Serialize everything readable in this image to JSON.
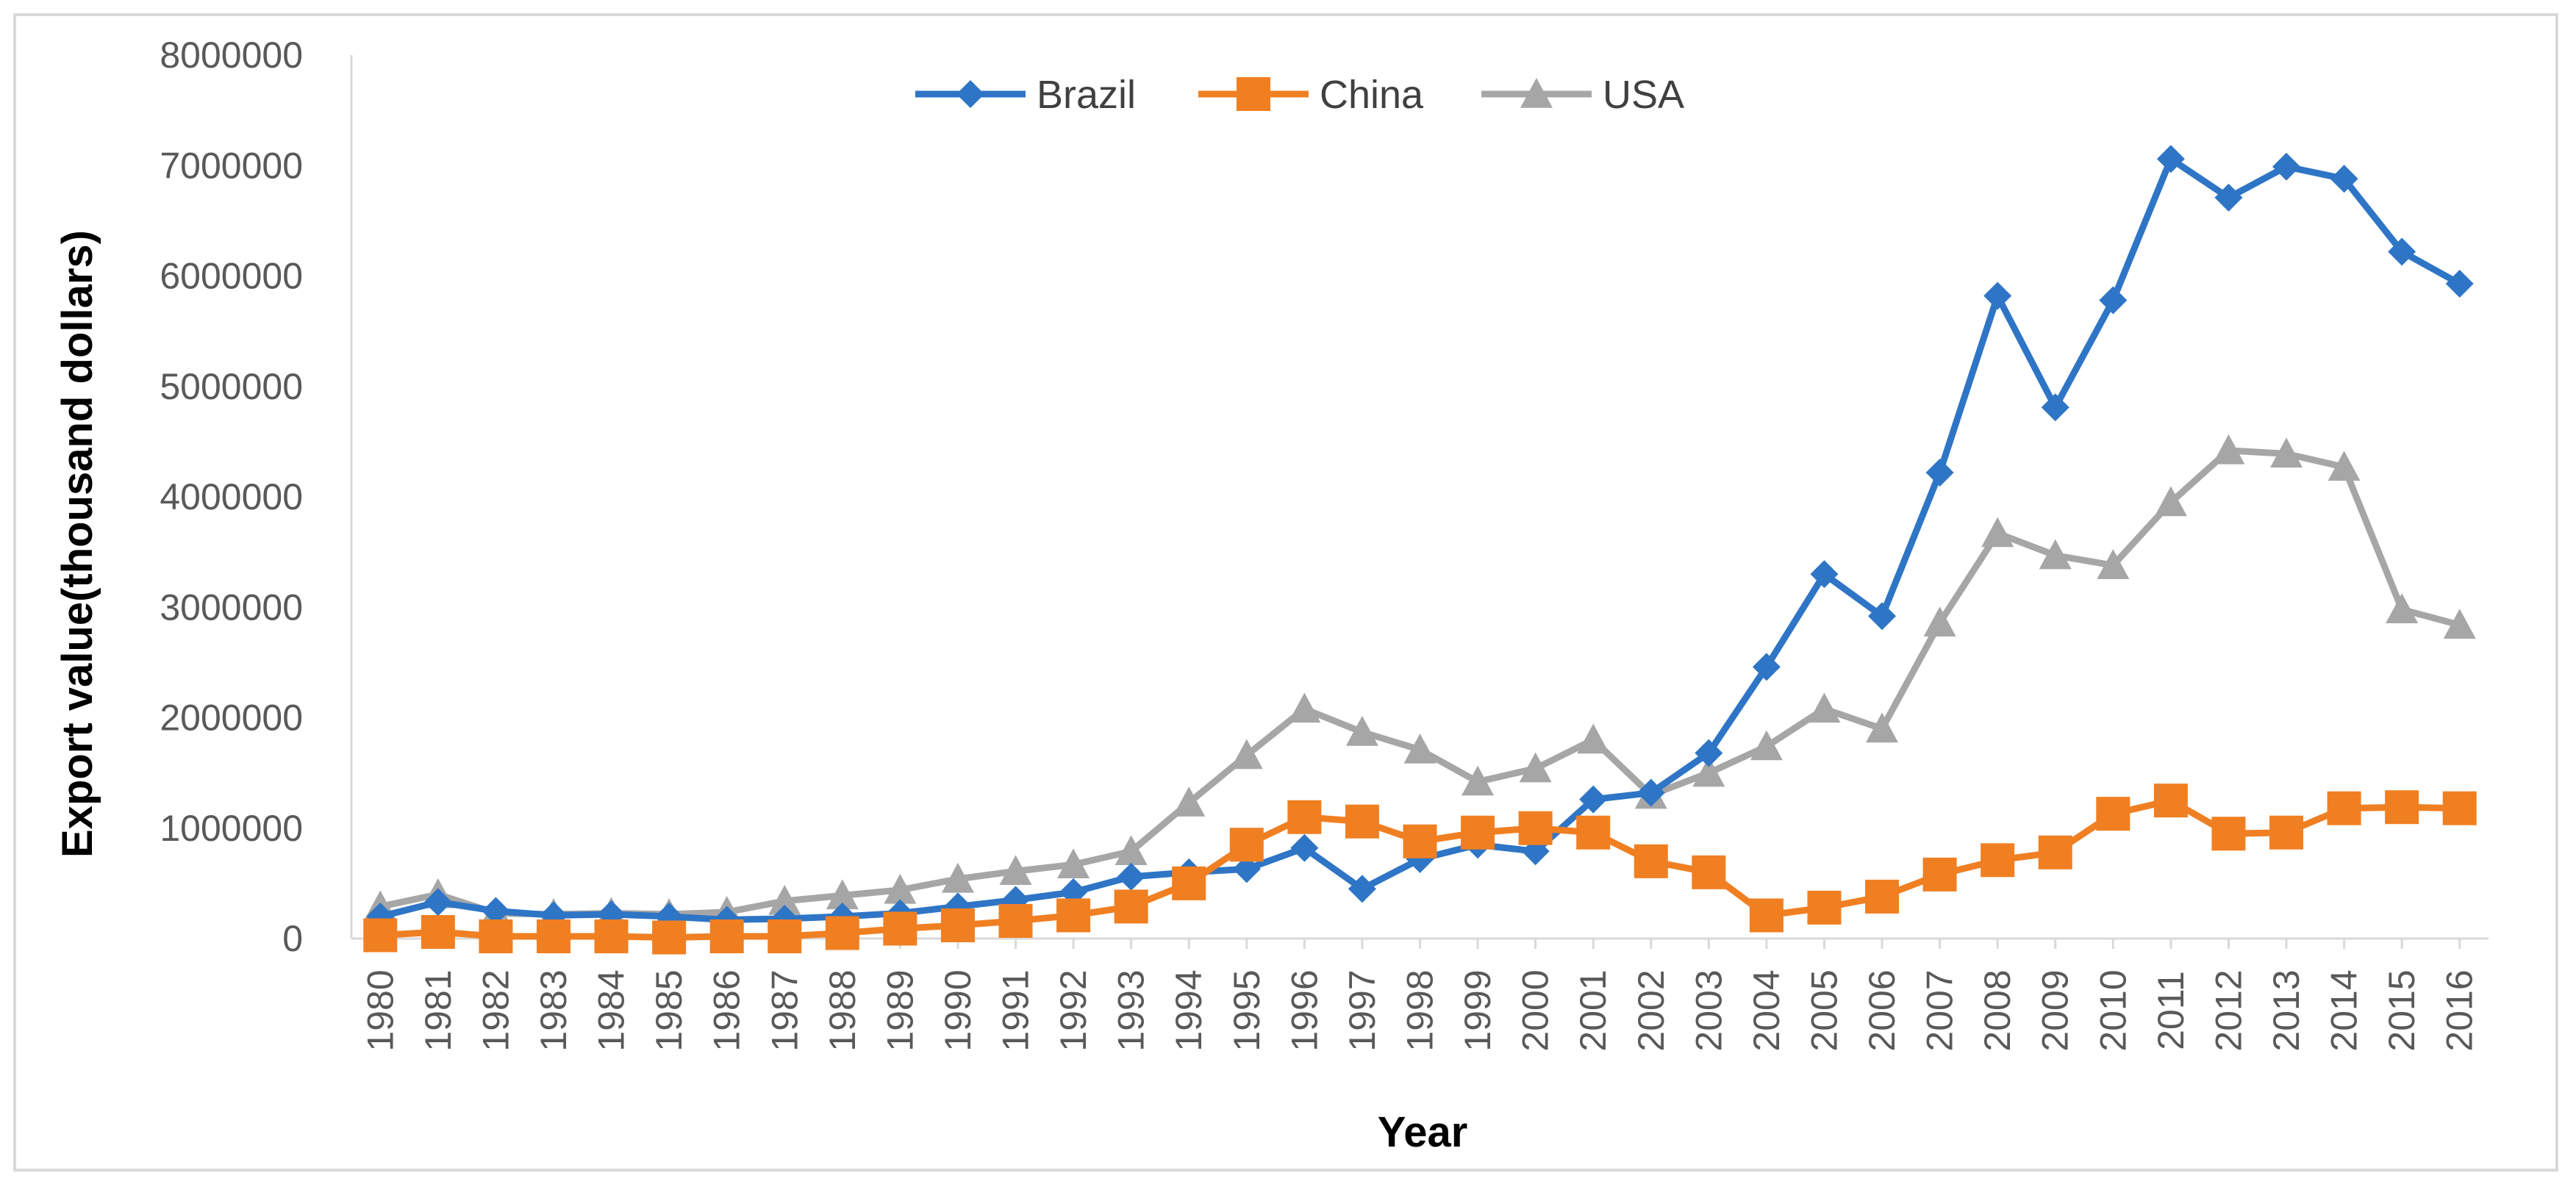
{
  "chart_data": {
    "type": "line",
    "title": "",
    "xlabel": "Year",
    "ylabel": "Export value(thousand dollars)",
    "ylim": [
      0,
      8000000
    ],
    "y_ticks": [
      "0",
      "1000000",
      "2000000",
      "3000000",
      "4000000",
      "5000000",
      "6000000",
      "7000000",
      "8000000"
    ],
    "y_tick_values": [
      0,
      1000000,
      2000000,
      3000000,
      4000000,
      5000000,
      6000000,
      7000000,
      8000000
    ],
    "grid": false,
    "legend_position": "top-center",
    "categories": [
      "1980",
      "1981",
      "1982",
      "1983",
      "1984",
      "1985",
      "1986",
      "1987",
      "1988",
      "1989",
      "1990",
      "1991",
      "1992",
      "1993",
      "1994",
      "1995",
      "1996",
      "1997",
      "1998",
      "1999",
      "2000",
      "2001",
      "2002",
      "2003",
      "2004",
      "2005",
      "2006",
      "2007",
      "2008",
      "2009",
      "2010",
      "2011",
      "2012",
      "2013",
      "2014",
      "2015",
      "2016"
    ],
    "series": [
      {
        "name": "Brazil",
        "color": "#2E75C6",
        "marker": "diamond",
        "values": [
          200000,
          330000,
          250000,
          210000,
          220000,
          200000,
          170000,
          180000,
          200000,
          230000,
          290000,
          350000,
          420000,
          560000,
          600000,
          630000,
          820000,
          450000,
          720000,
          850000,
          790000,
          1260000,
          1320000,
          1680000,
          2460000,
          3300000,
          2920000,
          4220000,
          5820000,
          4810000,
          5780000,
          7060000,
          6710000,
          6990000,
          6880000,
          6220000,
          5930000
        ]
      },
      {
        "name": "China",
        "color": "#F07F22",
        "marker": "square",
        "values": [
          30000,
          60000,
          20000,
          20000,
          20000,
          10000,
          20000,
          20000,
          50000,
          90000,
          120000,
          160000,
          210000,
          290000,
          500000,
          850000,
          1100000,
          1060000,
          880000,
          960000,
          1000000,
          960000,
          700000,
          600000,
          210000,
          280000,
          380000,
          580000,
          710000,
          780000,
          1130000,
          1250000,
          950000,
          960000,
          1180000,
          1190000,
          1180000
        ]
      },
      {
        "name": "USA",
        "color": "#A6A6A6",
        "marker": "triangle",
        "values": [
          290000,
          400000,
          230000,
          220000,
          230000,
          220000,
          240000,
          340000,
          390000,
          440000,
          540000,
          610000,
          670000,
          790000,
          1230000,
          1660000,
          2080000,
          1870000,
          1710000,
          1420000,
          1540000,
          1800000,
          1300000,
          1500000,
          1740000,
          2080000,
          1900000,
          2860000,
          3670000,
          3470000,
          3380000,
          3950000,
          4420000,
          4390000,
          4270000,
          2980000,
          2840000
        ]
      }
    ]
  }
}
